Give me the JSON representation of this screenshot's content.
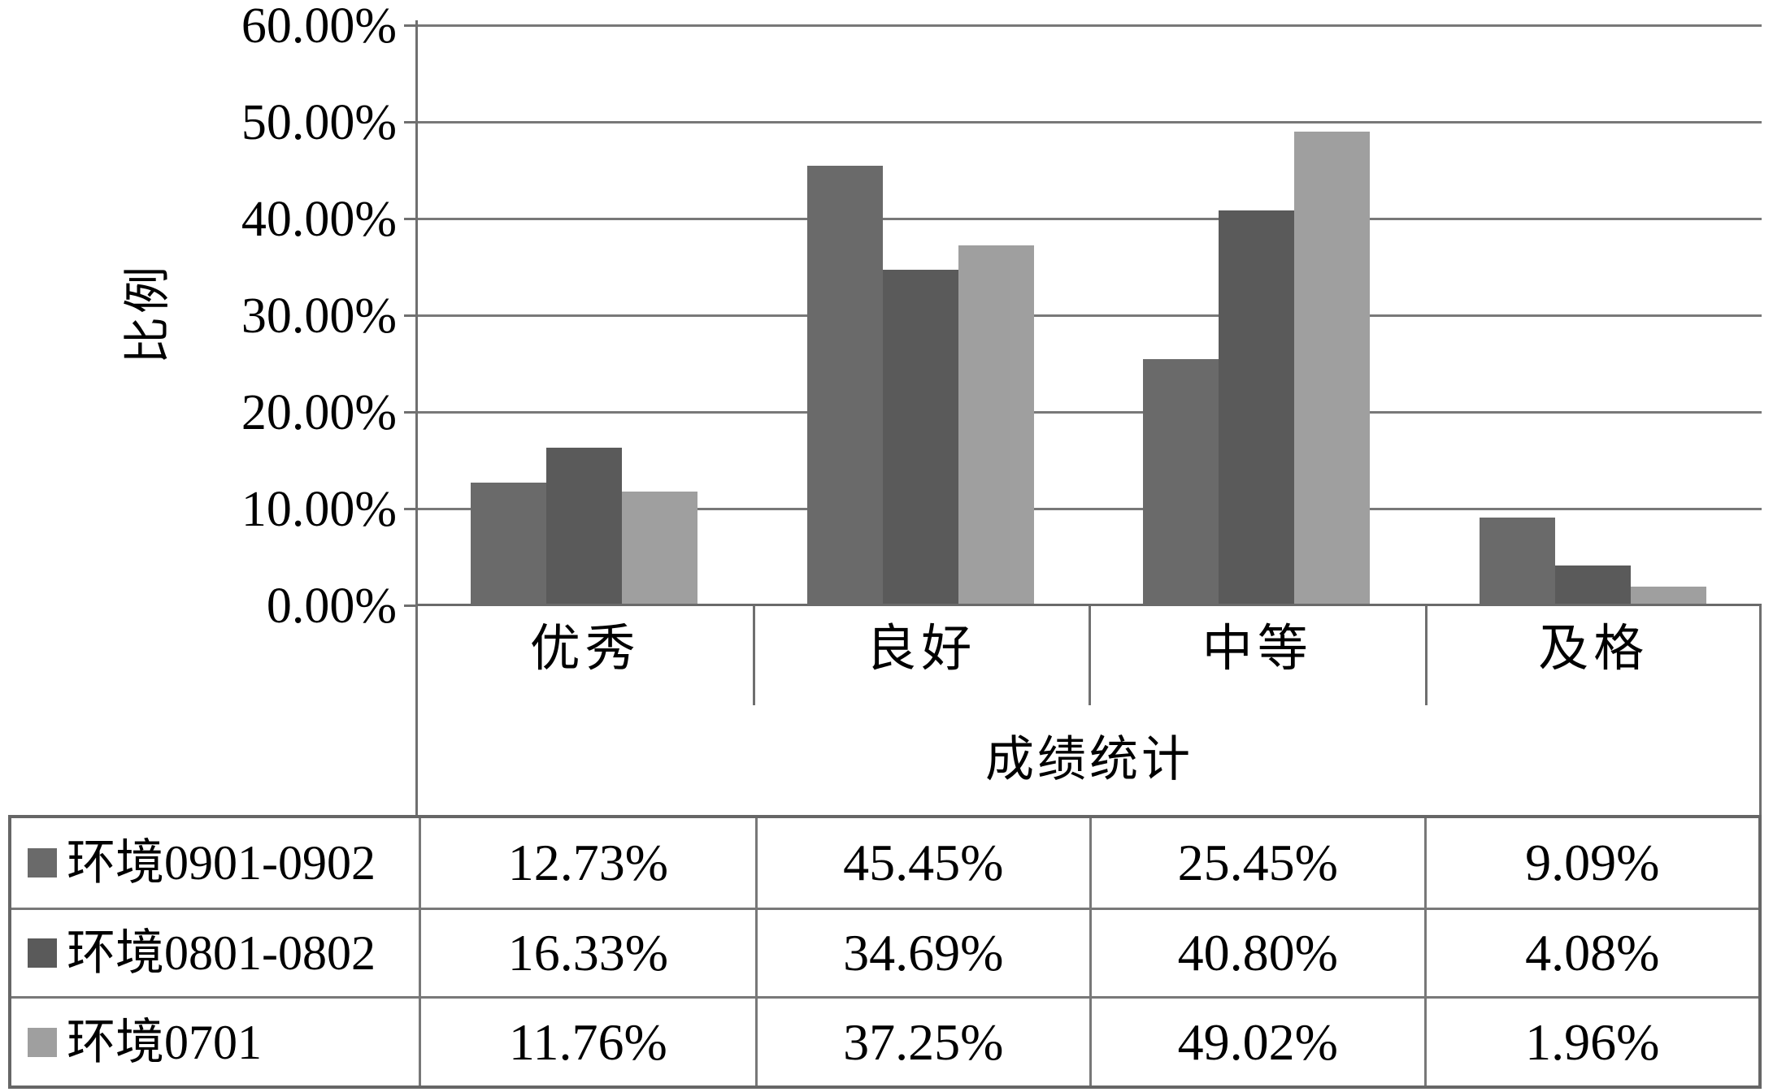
{
  "chart_data": {
    "type": "bar",
    "title": "",
    "ylabel": "比例",
    "xlabel": "成绩统计",
    "categories": [
      "优秀",
      "良好",
      "中等",
      "及格"
    ],
    "series": [
      {
        "name": "环境0901-0902",
        "color": "#6a6a6a",
        "values": [
          12.73,
          45.45,
          25.45,
          9.09
        ],
        "value_labels": [
          "12.73%",
          "45.45%",
          "25.45%",
          "9.09%"
        ]
      },
      {
        "name": "环境0801-0802",
        "color": "#5a5a5a",
        "values": [
          16.33,
          34.69,
          40.8,
          4.08
        ],
        "value_labels": [
          "16.33%",
          "34.69%",
          "40.80%",
          "4.08%"
        ]
      },
      {
        "name": "环境0701",
        "color": "#9f9f9f",
        "values": [
          11.76,
          37.25,
          49.02,
          1.96
        ],
        "value_labels": [
          "11.76%",
          "37.25%",
          "49.02%",
          "1.96%"
        ]
      }
    ],
    "ylim": [
      0,
      60
    ],
    "yticks": [
      0,
      10,
      20,
      30,
      40,
      50,
      60
    ],
    "ytick_labels": [
      "0.00%",
      "10.00%",
      "20.00%",
      "30.00%",
      "40.00%",
      "50.00%",
      "60.00%"
    ],
    "grid": true,
    "legend_position": "data-table-left",
    "data_table_shown": true
  }
}
